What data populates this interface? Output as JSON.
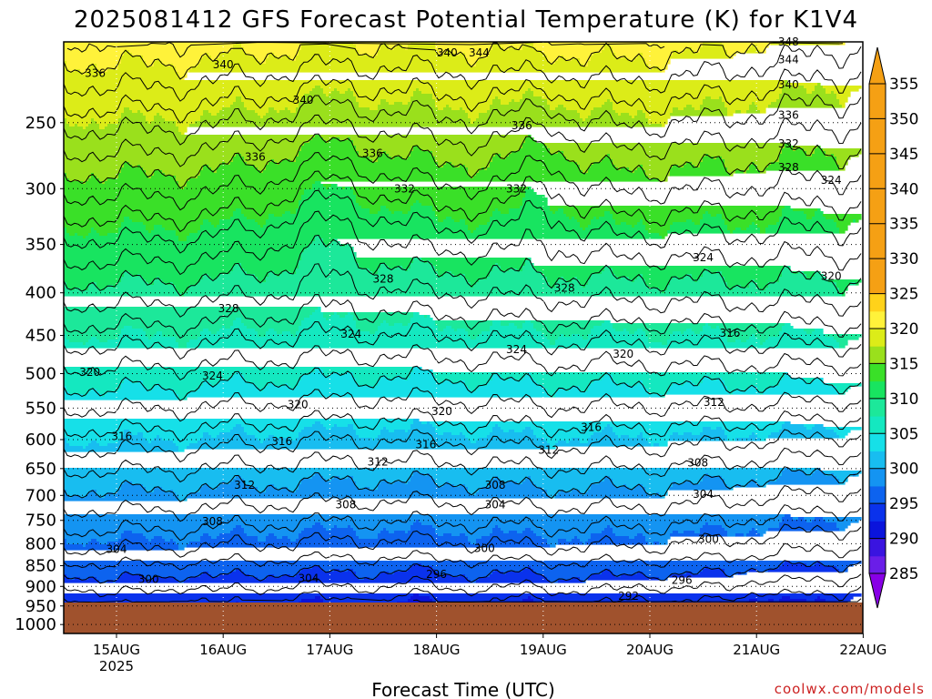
{
  "chart_data": {
    "type": "heatmap",
    "title": "2025081412 GFS Forecast Potential Temperature (K) for K1V4",
    "xlabel": "Forecast Time (UTC)",
    "ylabel": "",
    "x_ticks": [
      "15AUG",
      "16AUG",
      "17AUG",
      "18AUG",
      "19AUG",
      "20AUG",
      "21AUG",
      "22AUG"
    ],
    "x_year_label": "2025",
    "x_range": [
      "2025-08-14 12Z",
      "2025-08-22 00Z"
    ],
    "y_scale": "pressure (log)",
    "y_ticks": [
      250,
      300,
      350,
      400,
      450,
      500,
      550,
      600,
      650,
      700,
      750,
      800,
      850,
      900,
      950,
      1000
    ],
    "y_range_hpa": [
      200,
      1025
    ],
    "ground_level_hpa": 965,
    "grid": true,
    "colorbar": {
      "levels": [
        285,
        290,
        295,
        300,
        305,
        310,
        315,
        320,
        325,
        330,
        335,
        340,
        345,
        350,
        355
      ],
      "colors": [
        "#8800e6",
        "#6a1ee8",
        "#3a14e0",
        "#0a14dc",
        "#0a32ec",
        "#0d63ef",
        "#1494f2",
        "#18bdf0",
        "#16e0e8",
        "#14e8c0",
        "#1ce89a",
        "#18e460",
        "#3ae028",
        "#9ae01c",
        "#dcec18",
        "#fff23a",
        "#ffd21a",
        "#f5a014"
      ],
      "extend": "both"
    },
    "contour_interval_K": 2,
    "contour_labels": [
      {
        "day_offset": 0.3,
        "hpa": 218,
        "value": "336"
      },
      {
        "day_offset": 1.5,
        "hpa": 213,
        "value": "340"
      },
      {
        "day_offset": 2.25,
        "hpa": 235,
        "value": "340"
      },
      {
        "day_offset": 3.6,
        "hpa": 206,
        "value": "340"
      },
      {
        "day_offset": 3.9,
        "hpa": 206,
        "value": "344"
      },
      {
        "day_offset": 6.8,
        "hpa": 200,
        "value": "348"
      },
      {
        "day_offset": 6.8,
        "hpa": 210,
        "value": "344"
      },
      {
        "day_offset": 6.8,
        "hpa": 225,
        "value": "340"
      },
      {
        "day_offset": 6.8,
        "hpa": 245,
        "value": "336"
      },
      {
        "day_offset": 4.3,
        "hpa": 252,
        "value": "336"
      },
      {
        "day_offset": 1.8,
        "hpa": 275,
        "value": "336"
      },
      {
        "day_offset": 2.9,
        "hpa": 272,
        "value": "336"
      },
      {
        "day_offset": 3.2,
        "hpa": 300,
        "value": "332"
      },
      {
        "day_offset": 4.25,
        "hpa": 300,
        "value": "332"
      },
      {
        "day_offset": 6.8,
        "hpa": 265,
        "value": "332"
      },
      {
        "day_offset": 6.8,
        "hpa": 283,
        "value": "328"
      },
      {
        "day_offset": 7.2,
        "hpa": 293,
        "value": "324"
      },
      {
        "day_offset": 3.0,
        "hpa": 385,
        "value": "328"
      },
      {
        "day_offset": 4.7,
        "hpa": 395,
        "value": "328"
      },
      {
        "day_offset": 1.55,
        "hpa": 418,
        "value": "328"
      },
      {
        "day_offset": 6.0,
        "hpa": 363,
        "value": "324"
      },
      {
        "day_offset": 7.2,
        "hpa": 382,
        "value": "320"
      },
      {
        "day_offset": 2.7,
        "hpa": 448,
        "value": "324"
      },
      {
        "day_offset": 4.25,
        "hpa": 468,
        "value": "324"
      },
      {
        "day_offset": 1.4,
        "hpa": 503,
        "value": "324"
      },
      {
        "day_offset": 0.25,
        "hpa": 498,
        "value": "320"
      },
      {
        "day_offset": 5.25,
        "hpa": 474,
        "value": "320"
      },
      {
        "day_offset": 6.25,
        "hpa": 447,
        "value": "316"
      },
      {
        "day_offset": 2.2,
        "hpa": 545,
        "value": "320"
      },
      {
        "day_offset": 3.55,
        "hpa": 555,
        "value": "320"
      },
      {
        "day_offset": 6.1,
        "hpa": 541,
        "value": "312"
      },
      {
        "day_offset": 0.55,
        "hpa": 595,
        "value": "316"
      },
      {
        "day_offset": 2.05,
        "hpa": 603,
        "value": "316"
      },
      {
        "day_offset": 3.4,
        "hpa": 608,
        "value": "316"
      },
      {
        "day_offset": 4.95,
        "hpa": 580,
        "value": "316"
      },
      {
        "day_offset": 2.95,
        "hpa": 638,
        "value": "312"
      },
      {
        "day_offset": 4.55,
        "hpa": 618,
        "value": "312"
      },
      {
        "day_offset": 1.7,
        "hpa": 680,
        "value": "312"
      },
      {
        "day_offset": 5.95,
        "hpa": 640,
        "value": "308"
      },
      {
        "day_offset": 4.05,
        "hpa": 680,
        "value": "308"
      },
      {
        "day_offset": 2.65,
        "hpa": 718,
        "value": "308"
      },
      {
        "day_offset": 1.4,
        "hpa": 752,
        "value": "308"
      },
      {
        "day_offset": 4.05,
        "hpa": 718,
        "value": "304"
      },
      {
        "day_offset": 6.0,
        "hpa": 698,
        "value": "304"
      },
      {
        "day_offset": 0.5,
        "hpa": 812,
        "value": "304"
      },
      {
        "day_offset": 2.3,
        "hpa": 880,
        "value": "304"
      },
      {
        "day_offset": 3.95,
        "hpa": 810,
        "value": "300"
      },
      {
        "day_offset": 6.05,
        "hpa": 790,
        "value": "300"
      },
      {
        "day_offset": 0.8,
        "hpa": 883,
        "value": "300"
      },
      {
        "day_offset": 3.5,
        "hpa": 870,
        "value": "296"
      },
      {
        "day_offset": 5.8,
        "hpa": 885,
        "value": "296"
      },
      {
        "day_offset": 5.3,
        "hpa": 925,
        "value": "292"
      }
    ]
  },
  "credit": "coolwx.com/models"
}
